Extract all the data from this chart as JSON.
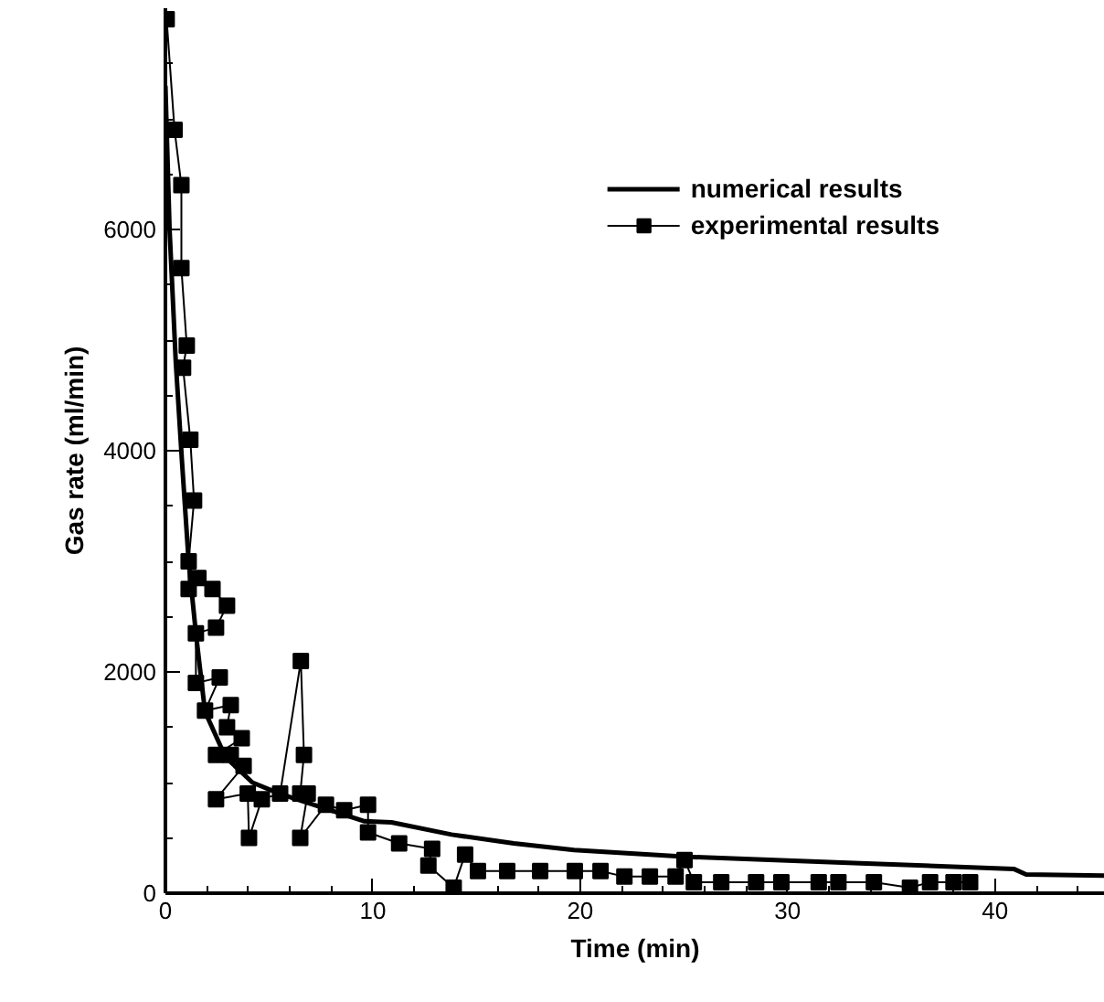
{
  "chart_data": {
    "type": "line",
    "xlabel": "Time (min)",
    "ylabel": "Gas rate (ml/min)",
    "xlim": [
      0,
      45.3
    ],
    "ylim": [
      0,
      8000
    ],
    "xticks": [
      0,
      {
        "value": 2,
        "label": null
      },
      {
        "value": 4,
        "label": null
      },
      {
        "value": 6,
        "label": null
      },
      {
        "value": 8,
        "label": null
      },
      10,
      {
        "value": 12,
        "label": null
      },
      {
        "value": 14,
        "label": null
      },
      {
        "value": 16,
        "label": null
      },
      {
        "value": 18,
        "label": null
      },
      20,
      {
        "value": 22,
        "label": null
      },
      {
        "value": 24,
        "label": null
      },
      {
        "value": 26,
        "label": null
      },
      {
        "value": 28,
        "label": null
      },
      30,
      {
        "value": 32,
        "label": null
      },
      {
        "value": 34,
        "label": null
      },
      {
        "value": 36,
        "label": null
      },
      {
        "value": 38,
        "label": null
      },
      40,
      {
        "value": 42,
        "label": null
      },
      {
        "value": 44,
        "label": null
      }
    ],
    "yticks": [
      0,
      {
        "value": 500,
        "label": null
      },
      {
        "value": 1000,
        "label": null
      },
      {
        "value": 1500,
        "label": null
      },
      2000,
      {
        "value": 2500,
        "label": null
      },
      {
        "value": 3000,
        "label": null
      },
      {
        "value": 3500,
        "label": null
      },
      4000,
      {
        "value": 4500,
        "label": null
      },
      {
        "value": 5000,
        "label": null
      },
      {
        "value": 5500,
        "label": null
      },
      6000,
      {
        "value": 6500,
        "label": null
      },
      {
        "value": 7000,
        "label": null
      },
      {
        "value": 7500,
        "label": null
      }
    ],
    "grid": false,
    "legend": "top right",
    "series": [
      {
        "name": "numerical results",
        "color": "#000000",
        "marker": "none",
        "x": [
          0,
          0.2,
          0.5,
          0.8,
          1.12,
          1.47,
          1.91,
          2.9,
          4.2,
          5.5,
          7.3,
          9.6,
          10.9,
          13.8,
          16.8,
          19.7,
          25,
          33.5,
          40.9,
          41.5,
          45.3
        ],
        "values": [
          7300,
          6000,
          4800,
          3900,
          3000,
          2350,
          1640,
          1230,
          1000,
          900,
          790,
          650,
          640,
          530,
          450,
          390,
          330,
          270,
          220,
          170,
          160
        ]
      },
      {
        "name": "experimental results",
        "color": "#000000",
        "marker": "square",
        "x": [
          0.06,
          0.44,
          0.77,
          0.77,
          1.03,
          0.85,
          1.2,
          1.38,
          1.12,
          1.12,
          1.59,
          2.27,
          2.97,
          2.44,
          1.47,
          1.47,
          2.62,
          1.91,
          3.15,
          2.97,
          3.68,
          2.44,
          3.15,
          3.77,
          2.44,
          3.97,
          4.03,
          4.65,
          5.53,
          6.53,
          6.68,
          6.5,
          6.86,
          6.5,
          7.74,
          8.62,
          9.77,
          9.77,
          11.27,
          12.86,
          12.68,
          13.9,
          14.45,
          15.07,
          16.48,
          18.07,
          19.74,
          20.98,
          22.13,
          23.36,
          24.6,
          25.03,
          25.48,
          26.8,
          28.48,
          29.7,
          31.5,
          32.45,
          34.16,
          35.9,
          36.87,
          38.0,
          38.8
        ],
        "values": [
          7900,
          6900,
          6400,
          5650,
          4950,
          4750,
          4100,
          3550,
          3000,
          2750,
          2850,
          2750,
          2600,
          2400,
          2350,
          1900,
          1950,
          1650,
          1700,
          1500,
          1400,
          1250,
          1250,
          1150,
          850,
          900,
          500,
          850,
          900,
          2100,
          1250,
          900,
          900,
          500,
          800,
          750,
          800,
          550,
          450,
          400,
          250,
          50,
          350,
          200,
          200,
          200,
          200,
          200,
          150,
          150,
          150,
          300,
          100,
          100,
          100,
          100,
          100,
          100,
          100,
          50,
          100,
          100,
          100
        ]
      }
    ]
  }
}
